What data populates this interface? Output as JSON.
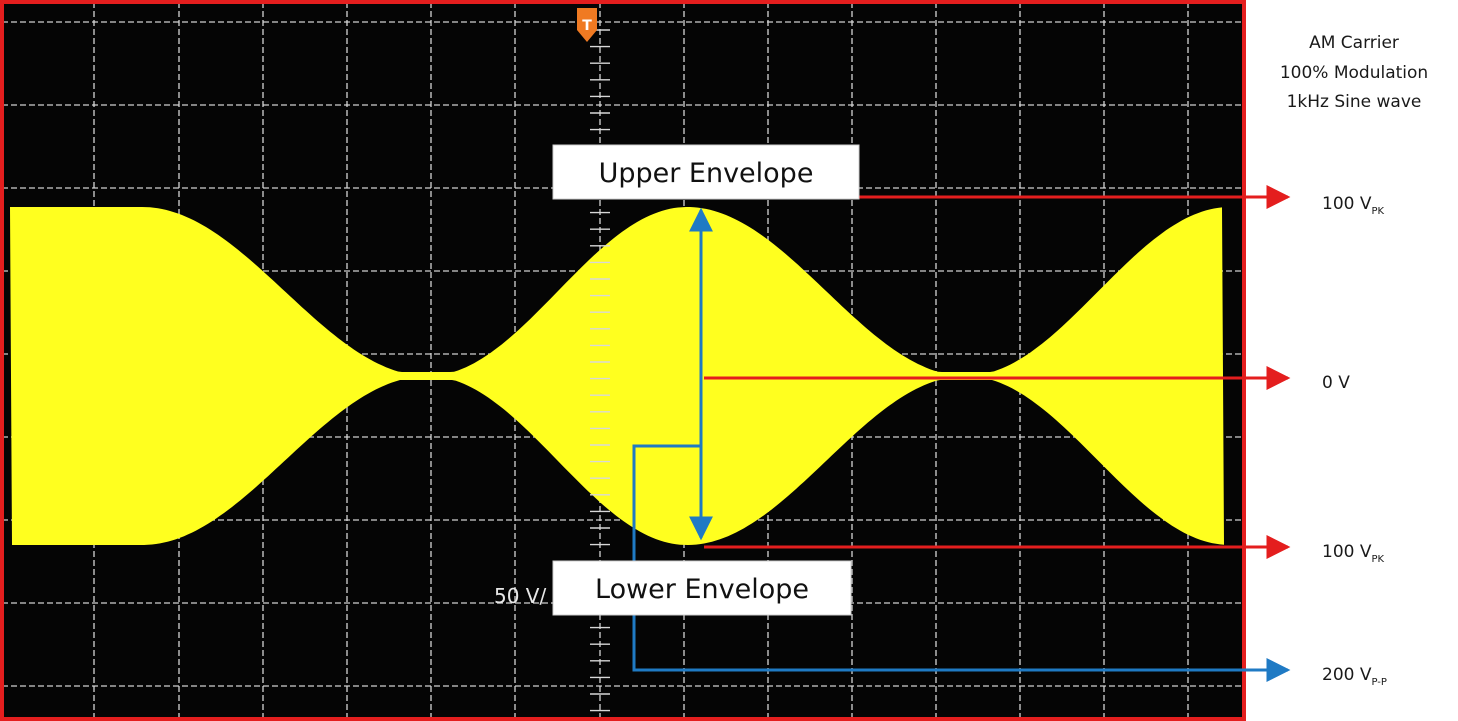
{
  "caption": {
    "line1": "AM Carrier",
    "line2": "100% Modulation",
    "line3": "1kHz Sine wave"
  },
  "callouts": {
    "upper": "Upper Envelope",
    "lower": "Lower Envelope"
  },
  "scope": {
    "scale_label": "50 V/",
    "trigger_marker": "T"
  },
  "measurements": {
    "upper_peak": {
      "value": "100 V",
      "sub": "PK"
    },
    "zero": {
      "value": "0 V",
      "sub": ""
    },
    "lower_peak": {
      "value": "100 V",
      "sub": "PK"
    },
    "peak_to_peak": {
      "value": "200 V",
      "sub": "P-P"
    }
  },
  "colors": {
    "trace": "#ffff1f",
    "grid": "#d8d8d8",
    "screen_border": "#e41e1e",
    "red_arrow": "#e41e1e",
    "blue_arrow": "#1f7ac4",
    "screen_bg": "#050505"
  },
  "chart_data": {
    "type": "line",
    "title": "",
    "xlabel": "",
    "ylabel": "",
    "volts_per_div": 50,
    "modulation_percent": 100,
    "modulating_frequency_hz": 1000,
    "envelope_peak_v": 100,
    "envelope_trough_v": 0,
    "series": [
      {
        "name": "Upper Envelope",
        "peak_v": 100,
        "trough_v": 0
      },
      {
        "name": "Lower Envelope",
        "peak_v": -100,
        "trough_v": 0
      }
    ]
  }
}
